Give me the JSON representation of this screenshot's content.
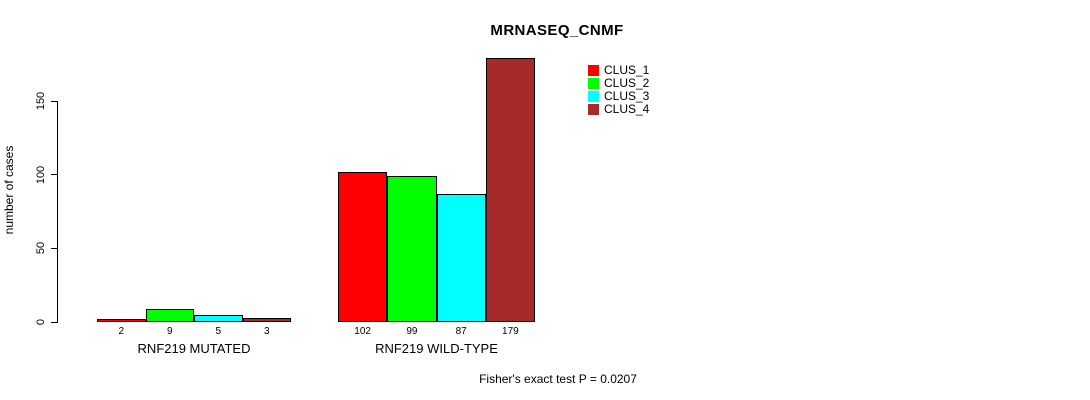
{
  "chart": {
    "title": "MRNASEQ_CNMF",
    "ylabel": "number of cases",
    "footer": "Fisher's exact test P = 0.0207"
  },
  "chart_data": {
    "type": "bar",
    "title": "MRNASEQ_CNMF",
    "xlabel": "",
    "ylabel": "number of cases",
    "categories": [
      "RNF219 MUTATED",
      "RNF219 WILD-TYPE"
    ],
    "series": [
      {
        "name": "CLUS_1",
        "color": "#FF0000",
        "values": [
          2,
          102
        ]
      },
      {
        "name": "CLUS_2",
        "color": "#00FF00",
        "values": [
          9,
          99
        ]
      },
      {
        "name": "CLUS_3",
        "color": "#00FFFF",
        "values": [
          5,
          87
        ]
      },
      {
        "name": "CLUS_4",
        "color": "#A52A2A",
        "values": [
          3,
          179
        ]
      }
    ],
    "bar_value_labels": [
      [
        "2",
        "9",
        "5",
        "3"
      ],
      [
        "102",
        "99",
        "87",
        "179"
      ]
    ],
    "yticks": [
      0,
      50,
      100,
      150
    ],
    "ylim": [
      0,
      150
    ],
    "grid": false,
    "legend_position": "top-right",
    "legend_entries": [
      "CLUS_1",
      "CLUS_2",
      "CLUS_3",
      "CLUS_4"
    ],
    "annotation": "Fisher's exact test P = 0.0207",
    "background": "#FFFFFF",
    "axis_color": "#000000"
  }
}
